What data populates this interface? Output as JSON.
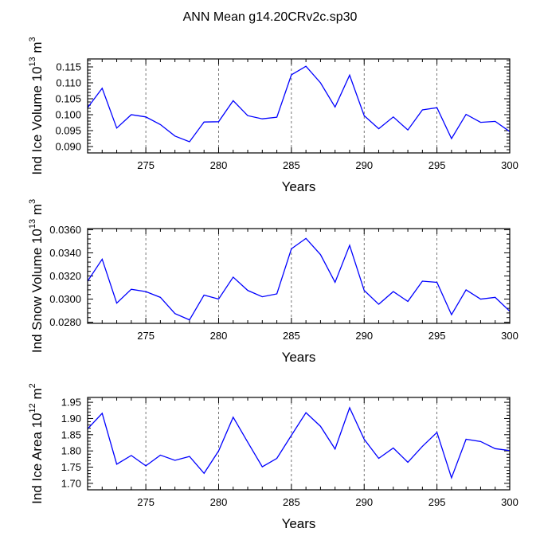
{
  "title": "ANN Mean g14.20CRv2c.sp30",
  "chart_data": [
    {
      "type": "line",
      "xlabel": "Years",
      "ylabel": {
        "prefix": "Ind Ice Volume 10",
        "exp": "13",
        "unit": " m",
        "unit_exp": "3"
      },
      "xlim": [
        271,
        300
      ],
      "ylim": [
        0.088,
        0.1175
      ],
      "xticks": [
        275,
        280,
        285,
        290,
        295,
        300
      ],
      "yticks": [
        0.09,
        0.095,
        0.1,
        0.105,
        0.11,
        0.115
      ],
      "ytick_labels": [
        "0.090",
        "0.095",
        "0.100",
        "0.105",
        "0.110",
        "0.115"
      ],
      "grid_x": [
        275,
        280,
        285,
        290,
        295
      ],
      "color": "#0000ff",
      "x": [
        271,
        272,
        273,
        274,
        275,
        276,
        277,
        278,
        279,
        280,
        281,
        282,
        283,
        284,
        285,
        286,
        287,
        288,
        289,
        290,
        291,
        292,
        293,
        294,
        295,
        296,
        297,
        298,
        299,
        300
      ],
      "y": [
        0.1022,
        0.1083,
        0.0958,
        0.1,
        0.0993,
        0.0969,
        0.0933,
        0.0915,
        0.0977,
        0.0978,
        0.1044,
        0.0997,
        0.0987,
        0.0992,
        0.1125,
        0.1152,
        0.11,
        0.1024,
        0.1124,
        0.0997,
        0.0956,
        0.0993,
        0.0952,
        0.1015,
        0.1022,
        0.0925,
        0.1001,
        0.0976,
        0.0979,
        0.0947
      ]
    },
    {
      "type": "line",
      "xlabel": "Years",
      "ylabel": {
        "prefix": "Ind Snow Volume 10",
        "exp": "13",
        "unit": " m",
        "unit_exp": "3"
      },
      "xlim": [
        271,
        300
      ],
      "ylim": [
        0.0279,
        0.0361
      ],
      "xticks": [
        275,
        280,
        285,
        290,
        295,
        300
      ],
      "yticks": [
        0.028,
        0.03,
        0.032,
        0.034,
        0.036
      ],
      "ytick_labels": [
        "0.0280",
        "0.0300",
        "0.0320",
        "0.0340",
        "0.0360"
      ],
      "grid_x": [
        275,
        280,
        285,
        290,
        295
      ],
      "color": "#0000ff",
      "x": [
        271,
        272,
        273,
        274,
        275,
        276,
        277,
        278,
        279,
        280,
        281,
        282,
        283,
        284,
        285,
        286,
        287,
        288,
        289,
        290,
        291,
        292,
        293,
        294,
        295,
        296,
        297,
        298,
        299,
        300
      ],
      "y": [
        0.03155,
        0.03345,
        0.02965,
        0.03085,
        0.03065,
        0.03015,
        0.02875,
        0.0282,
        0.03035,
        0.03,
        0.0319,
        0.03075,
        0.0302,
        0.03045,
        0.03435,
        0.03525,
        0.03385,
        0.03145,
        0.03465,
        0.03075,
        0.02955,
        0.03065,
        0.0298,
        0.03155,
        0.03145,
        0.02865,
        0.0308,
        0.03,
        0.03015,
        0.02895
      ]
    },
    {
      "type": "line",
      "xlabel": "Years",
      "ylabel": {
        "prefix": "Ind Ice Area 10",
        "exp": "12",
        "unit": " m",
        "unit_exp": "2"
      },
      "xlim": [
        271,
        300
      ],
      "ylim": [
        1.68,
        1.965
      ],
      "xticks": [
        275,
        280,
        285,
        290,
        295,
        300
      ],
      "yticks": [
        1.7,
        1.75,
        1.8,
        1.85,
        1.9,
        1.95
      ],
      "ytick_labels": [
        "1.70",
        "1.75",
        "1.80",
        "1.85",
        "1.90",
        "1.95"
      ],
      "grid_x": [
        275,
        280,
        285,
        290,
        295
      ],
      "color": "#0000ff",
      "x": [
        271,
        272,
        273,
        274,
        275,
        276,
        277,
        278,
        279,
        280,
        281,
        282,
        283,
        284,
        285,
        286,
        287,
        288,
        289,
        290,
        291,
        292,
        293,
        294,
        295,
        296,
        297,
        298,
        299,
        300
      ],
      "y": [
        1.868,
        1.916,
        1.759,
        1.786,
        1.754,
        1.787,
        1.771,
        1.783,
        1.731,
        1.8,
        1.904,
        1.827,
        1.751,
        1.777,
        1.848,
        1.918,
        1.876,
        1.806,
        1.933,
        1.836,
        1.777,
        1.809,
        1.765,
        1.814,
        1.857,
        1.717,
        1.836,
        1.829,
        1.807,
        1.801
      ]
    }
  ]
}
